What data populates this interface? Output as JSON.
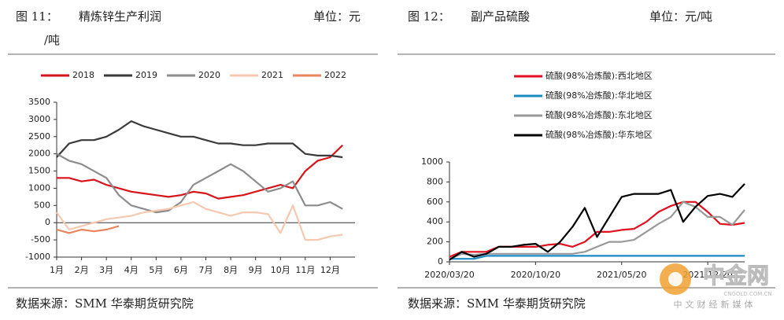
{
  "chart_data": [
    {
      "type": "line",
      "figure_label": "图 11：",
      "title": "精炼锌生产利润",
      "unit": "单位：元",
      "unit_cont": "/吨",
      "source": "数据来源：SMM 华泰期货研究院",
      "x": [
        1,
        1.5,
        2,
        2.5,
        3,
        3.5,
        4,
        4.5,
        5,
        5.5,
        6,
        6.5,
        7,
        7.5,
        8,
        8.5,
        9,
        9.5,
        10,
        10.5,
        11,
        11.5,
        12,
        12.5
      ],
      "xlim": [
        1,
        13
      ],
      "xticks": [
        {
          "value": 1,
          "label": "1月"
        },
        {
          "value": 2,
          "label": "2月"
        },
        {
          "value": 3,
          "label": "3月"
        },
        {
          "value": 4,
          "label": "4月"
        },
        {
          "value": 5,
          "label": "5月"
        },
        {
          "value": 6,
          "label": "6月"
        },
        {
          "value": 7,
          "label": "7月"
        },
        {
          "value": 8,
          "label": "8月"
        },
        {
          "value": 9,
          "label": "9月"
        },
        {
          "value": 10,
          "label": "10月"
        },
        {
          "value": 11,
          "label": "11月"
        },
        {
          "value": 12,
          "label": "12月"
        }
      ],
      "ylim": [
        -1000,
        3500
      ],
      "yticks": [
        -1000,
        -500,
        0,
        500,
        1000,
        1500,
        2000,
        2500,
        3000,
        3500
      ],
      "legend": "top",
      "series": [
        {
          "name": "2018",
          "color": "#d7141a",
          "values": [
            1300,
            1300,
            1200,
            1250,
            1100,
            1000,
            900,
            850,
            800,
            750,
            800,
            900,
            850,
            700,
            750,
            800,
            900,
            1000,
            1100,
            1000,
            1500,
            1800,
            1900,
            2250
          ]
        },
        {
          "name": "2019",
          "color": "#3a3a3a",
          "values": [
            1900,
            2300,
            2400,
            2400,
            2500,
            2700,
            2950,
            2800,
            2700,
            2600,
            2500,
            2500,
            2400,
            2300,
            2300,
            2250,
            2250,
            2300,
            2300,
            2300,
            2000,
            1950,
            1950,
            1900
          ]
        },
        {
          "name": "2020",
          "color": "#8c8c8c",
          "values": [
            2000,
            1800,
            1700,
            1500,
            1300,
            800,
            500,
            400,
            300,
            350,
            600,
            1100,
            1300,
            1500,
            1700,
            1500,
            1200,
            900,
            1000,
            1200,
            500,
            500,
            600,
            400
          ]
        },
        {
          "name": "2021",
          "color": "#f6c8b0",
          "values": [
            300,
            -200,
            -100,
            0,
            100,
            150,
            200,
            300,
            350,
            400,
            500,
            600,
            400,
            300,
            200,
            300,
            300,
            250,
            -300,
            500,
            -500,
            -500,
            -400,
            -350
          ]
        },
        {
          "name": "2022",
          "color": "#e8845c",
          "values": [
            -200,
            -300,
            -200,
            -250,
            -200,
            -100,
            null,
            null,
            null,
            null,
            null,
            null,
            null,
            null,
            null,
            null,
            null,
            null,
            null,
            null,
            null,
            null,
            null,
            null
          ]
        }
      ]
    },
    {
      "type": "line",
      "figure_label": "图 12：",
      "title": "副产品硫酸",
      "unit": "单位：元/吨",
      "source": "数据来源：SMM 华泰期货研究院",
      "categories": [
        "2020/03/20",
        null,
        null,
        null,
        null,
        null,
        null,
        "2020/10/20",
        null,
        null,
        null,
        null,
        null,
        null,
        "2021/05/20",
        null,
        null,
        null,
        null,
        null,
        null,
        "2021/12/20",
        null,
        null,
        null
      ],
      "ylim": [
        0,
        1000
      ],
      "yticks": [
        0,
        200,
        400,
        600,
        800,
        1000
      ],
      "legend": "top",
      "series": [
        {
          "name": "硫酸(98%冶炼酸):西北地区",
          "color": "#e0101e",
          "values": [
            50,
            100,
            100,
            100,
            150,
            150,
            150,
            150,
            170,
            180,
            150,
            200,
            300,
            300,
            320,
            330,
            400,
            500,
            560,
            600,
            600,
            500,
            380,
            370,
            390
          ]
        },
        {
          "name": "硫酸(98%冶炼酸):华北地区",
          "color": "#1b8ac4",
          "values": [
            30,
            30,
            30,
            60,
            60,
            60,
            60,
            60,
            60,
            60,
            60,
            60,
            60,
            60,
            60,
            60,
            60,
            60,
            60,
            60,
            60,
            60,
            60,
            60,
            60
          ]
        },
        {
          "name": "硫酸(98%冶炼酸):东北地区",
          "color": "#999999",
          "values": [
            30,
            80,
            70,
            80,
            80,
            80,
            80,
            80,
            80,
            80,
            80,
            100,
            150,
            200,
            200,
            220,
            300,
            380,
            450,
            600,
            550,
            450,
            450,
            370,
            520
          ]
        },
        {
          "name": "硫酸(98%冶炼酸):华东地区",
          "color": "#000000",
          "values": [
            20,
            100,
            50,
            80,
            150,
            150,
            170,
            180,
            100,
            200,
            350,
            540,
            250,
            450,
            650,
            680,
            680,
            680,
            720,
            400,
            550,
            660,
            680,
            650,
            780
          ]
        }
      ]
    }
  ],
  "watermark": {
    "name": "中金网",
    "domain": "CNGOLD.COM.CN",
    "tagline": "中文财经新媒体"
  }
}
